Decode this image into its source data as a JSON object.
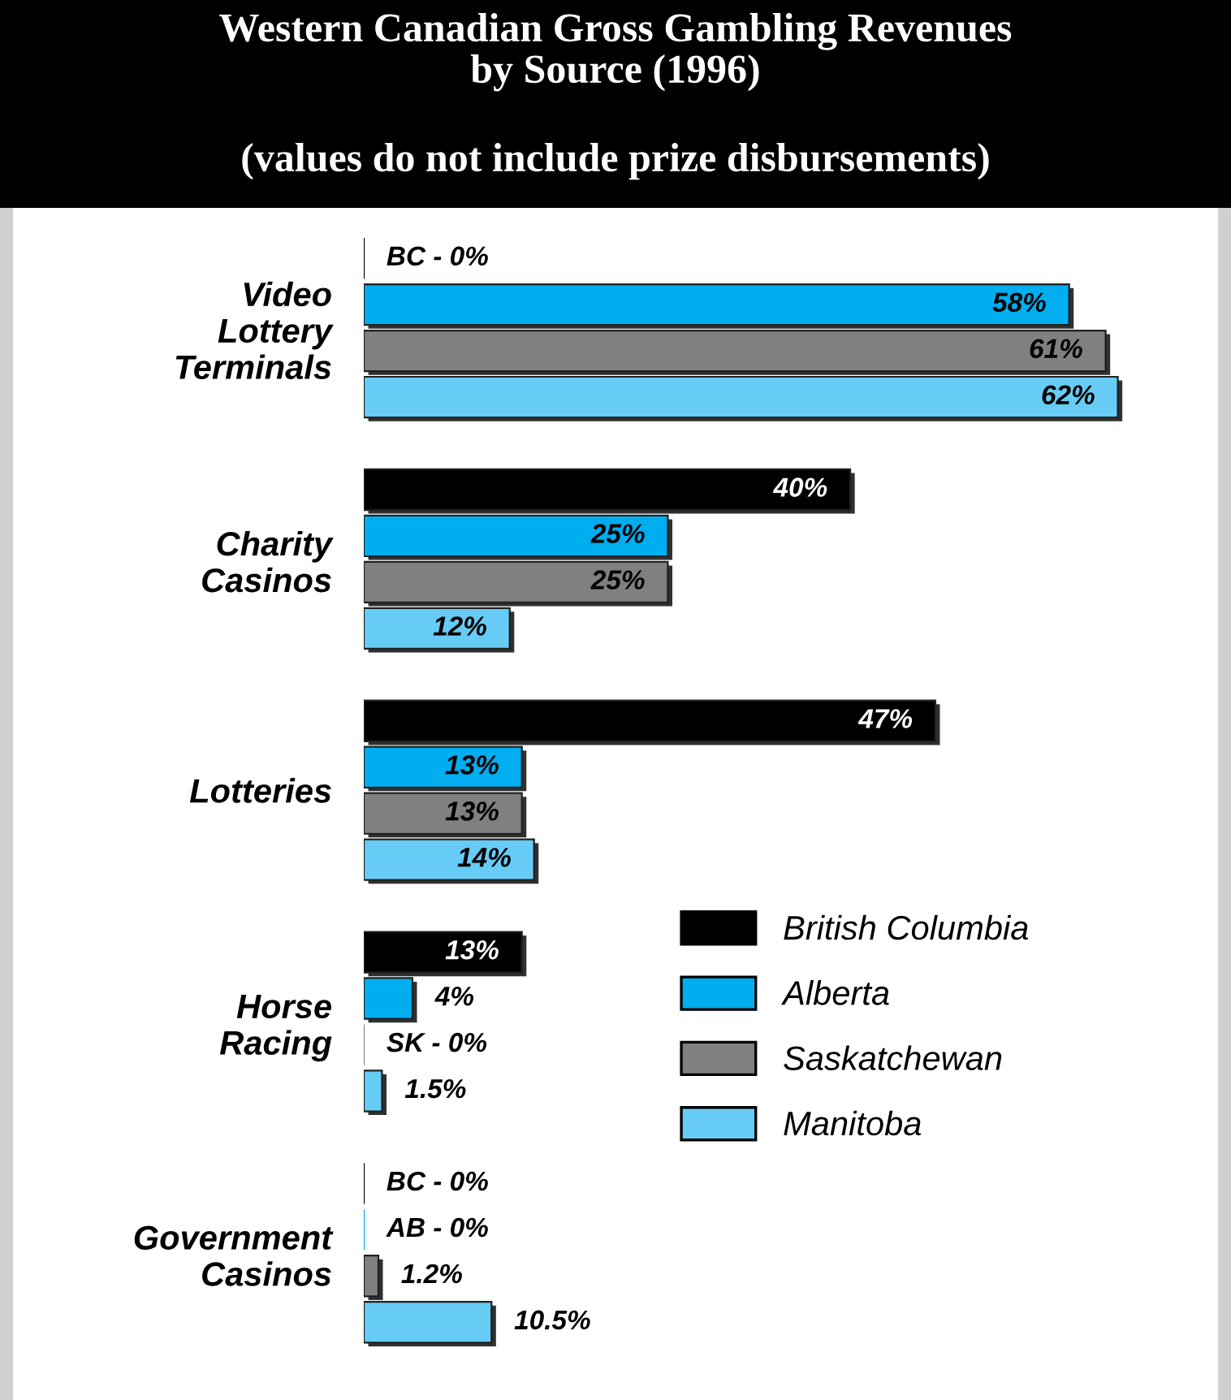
{
  "chart_data": {
    "type": "bar",
    "orientation": "horizontal",
    "title": "Western Canadian Gross Gambling Revenues\nby Source (1996)",
    "subtitle": "(values do not include prize disbursements)",
    "categories": [
      "Video Lottery Terminals",
      "Charity Casinos",
      "Lotteries",
      "Horse Racing",
      "Government Casinos"
    ],
    "series": [
      {
        "name": "British Columbia",
        "color": "#000000",
        "values": [
          0,
          40,
          47,
          13,
          0
        ],
        "value_labels": [
          "BC - 0%",
          "40%",
          "47%",
          "13%",
          "BC - 0%"
        ]
      },
      {
        "name": "Alberta",
        "color": "#00aeef",
        "values": [
          58,
          25,
          13,
          4,
          0
        ],
        "value_labels": [
          "58%",
          "25%",
          "13%",
          "4%",
          "AB - 0%"
        ]
      },
      {
        "name": "Saskatchewan",
        "color": "#808080",
        "values": [
          61,
          25,
          13,
          0,
          1.2
        ],
        "value_labels": [
          "61%",
          "25%",
          "13%",
          "SK - 0%",
          "1.2%"
        ]
      },
      {
        "name": "Manitoba",
        "color": "#66ccf5",
        "values": [
          62,
          12,
          14,
          1.5,
          10.5
        ],
        "value_labels": [
          "62%",
          "12%",
          "14%",
          "1.5%",
          "10.5%"
        ]
      }
    ],
    "legend": "bottom right",
    "grid": false
  }
}
